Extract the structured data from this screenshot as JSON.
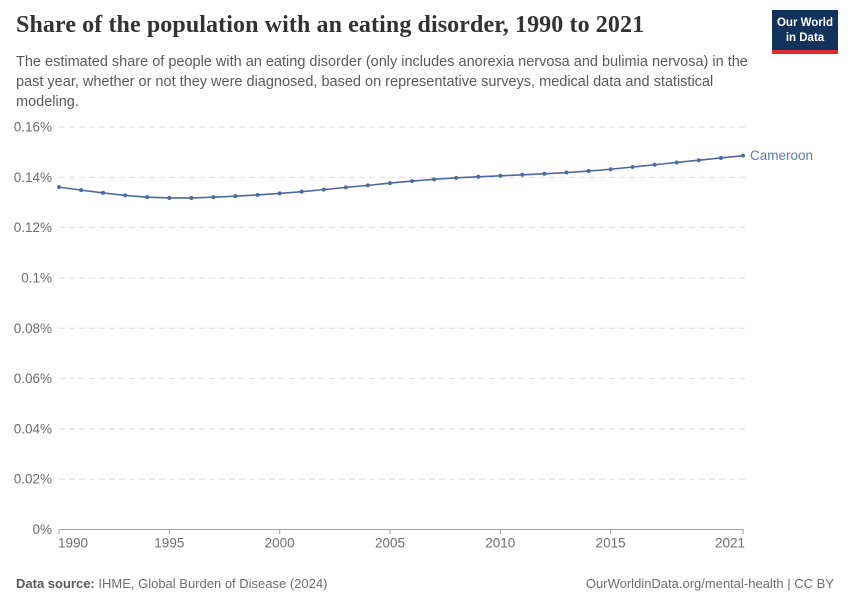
{
  "header": {
    "title": "Share of the population with an eating disorder, 1990 to 2021",
    "subtitle": "The estimated share of people with an eating disorder (only includes anorexia nervosa and bulimia nervosa) in the past year, whether or not they were diagnosed, based on representative surveys, medical data and statistical modeling.",
    "logo": {
      "line1": "Our World",
      "line2": "in Data",
      "bg_color": "#12335b",
      "accent_color": "#dc2e32"
    }
  },
  "chart_data": {
    "type": "line",
    "title": "Share of the population with an eating disorder, 1990 to 2021",
    "xlabel": "",
    "ylabel": "",
    "unit": "%",
    "xlim": [
      1990,
      2021
    ],
    "ylim": [
      0,
      0.16
    ],
    "grid": "horizontal dashed",
    "legend_position": "end-of-line label",
    "x": [
      1990,
      1991,
      1992,
      1993,
      1994,
      1995,
      1996,
      1997,
      1998,
      1999,
      2000,
      2001,
      2002,
      2003,
      2004,
      2005,
      2006,
      2007,
      2008,
      2009,
      2010,
      2011,
      2012,
      2013,
      2014,
      2015,
      2016,
      2017,
      2018,
      2019,
      2020,
      2021
    ],
    "series": [
      {
        "name": "Cameroon",
        "color": "#4C6A9C",
        "label_color": "#5b7db1",
        "values": [
          0.1361,
          0.1349,
          0.1338,
          0.1328,
          0.1321,
          0.1318,
          0.1318,
          0.1321,
          0.1325,
          0.133,
          0.1336,
          0.1343,
          0.1351,
          0.136,
          0.1368,
          0.1377,
          0.1385,
          0.1392,
          0.1398,
          0.1402,
          0.1406,
          0.141,
          0.1414,
          0.1419,
          0.1425,
          0.1432,
          0.1441,
          0.145,
          0.1459,
          0.1468,
          0.1477,
          0.1486
        ]
      }
    ],
    "x_ticks": [
      1990,
      1995,
      2000,
      2005,
      2010,
      2015,
      2021
    ],
    "y_ticks": [
      {
        "value": 0.16,
        "label": "0.16%"
      },
      {
        "value": 0.14,
        "label": "0.14%"
      },
      {
        "value": 0.12,
        "label": "0.12%"
      },
      {
        "value": 0.1,
        "label": "0.1%"
      },
      {
        "value": 0.08,
        "label": "0.08%"
      },
      {
        "value": 0.06,
        "label": "0.06%"
      },
      {
        "value": 0.04,
        "label": "0.04%"
      },
      {
        "value": 0.02,
        "label": "0.02%"
      },
      {
        "value": 0.0,
        "label": "0%"
      }
    ]
  },
  "footer": {
    "source_label": "Data source:",
    "source_value": "IHME, Global Burden of Disease (2024)",
    "rights": "OurWorldinData.org/mental-health | CC BY"
  },
  "colors": {
    "line": "#4C6A9C",
    "gridline": "#dedede",
    "axis": "#a1a1a1",
    "tick_text": "#6e6e6e"
  }
}
